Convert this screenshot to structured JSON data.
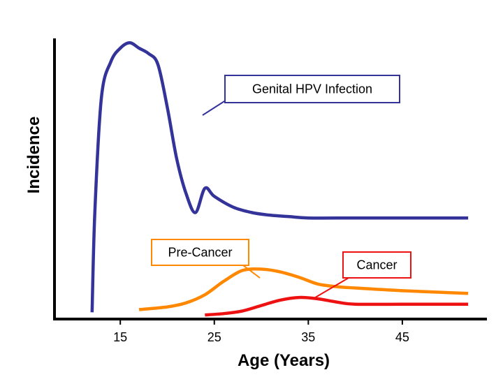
{
  "chart_data": {
    "type": "line",
    "title": "",
    "xlabel": "Age (Years)",
    "ylabel": "Incidence",
    "x_ticks": [
      15,
      25,
      35,
      45
    ],
    "xlim": [
      8,
      54
    ],
    "ylim": [
      0,
      100
    ],
    "y_ticks_shown": false,
    "grid": false,
    "series": [
      {
        "name": "Genital HPV Infection",
        "color": "#333399",
        "x": [
          12,
          12.3,
          13,
          14,
          15,
          16,
          17,
          18,
          19,
          20,
          21,
          22,
          23,
          24,
          25,
          27,
          29,
          31,
          33,
          35,
          40,
          45,
          52
        ],
        "y": [
          2,
          40,
          82,
          95,
          100,
          102,
          100,
          98,
          94,
          78,
          59,
          46,
          39,
          48,
          45,
          41,
          39,
          38,
          37.5,
          37,
          37,
          37,
          37
        ]
      },
      {
        "name": "Pre-Cancer",
        "color": "#ff8800",
        "x": [
          17,
          20,
          22,
          24,
          26,
          28,
          30,
          32,
          34,
          36,
          38,
          40,
          45,
          52
        ],
        "y": [
          3,
          4,
          5.5,
          8.5,
          13.5,
          17.5,
          18,
          17,
          15,
          12.5,
          11.5,
          11,
          10,
          9
        ]
      },
      {
        "name": "Cancer",
        "color": "#ee1111",
        "x": [
          24,
          26,
          28,
          30,
          32,
          34,
          36,
          38,
          40,
          45,
          52
        ],
        "y": [
          1,
          1.5,
          2.5,
          4.5,
          6.5,
          7.5,
          7,
          5.8,
          5,
          5,
          5
        ]
      }
    ],
    "annotations": [
      {
        "text": "Genital HPV Infection",
        "series": "Genital HPV Infection",
        "border_color": "#333399"
      },
      {
        "text": "Pre-Cancer",
        "series": "Pre-Cancer",
        "border_color": "#ff8800"
      },
      {
        "text": "Cancer",
        "series": "Cancer",
        "border_color": "#ee1111"
      }
    ]
  }
}
